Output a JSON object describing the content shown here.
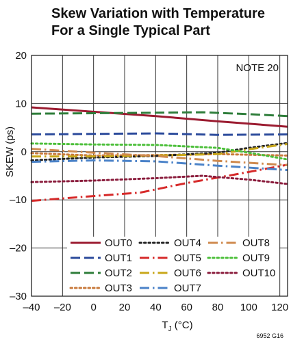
{
  "chart_data": {
    "type": "line",
    "title_lines": [
      "Skew Variation with Temperature",
      "For a Single Typical Part"
    ],
    "xlabel_main": "T",
    "xlabel_sub": "J",
    "xlabel_unit": " (°C)",
    "ylabel": "SKEW (ps)",
    "xlim": [
      -40,
      125
    ],
    "ylim": [
      -30,
      20
    ],
    "xticks": [
      -40,
      -20,
      0,
      20,
      40,
      60,
      80,
      100,
      120
    ],
    "xtick_labels": [
      "–40",
      "–20",
      "0",
      "20",
      "40",
      "60",
      "80",
      "100",
      "120"
    ],
    "yticks": [
      -30,
      -20,
      -10,
      0,
      10,
      20
    ],
    "ytick_labels": [
      "–30",
      "–20",
      "–10",
      "0",
      "10",
      "20"
    ],
    "grid": true,
    "note": "NOTE 20",
    "figure_code": "6952 G16",
    "legend_placement": "bottom",
    "series": [
      {
        "name": "OUT0",
        "color": "#9b1b30",
        "style": "solid",
        "x": [
          -40,
          0,
          40,
          80,
          125
        ],
        "values": [
          9.2,
          8.3,
          7.4,
          6.3,
          5.2
        ]
      },
      {
        "name": "OUT1",
        "color": "#2b4a9b",
        "style": "dash",
        "x": [
          -40,
          0,
          40,
          80,
          125
        ],
        "values": [
          3.6,
          3.7,
          3.8,
          3.5,
          3.6
        ]
      },
      {
        "name": "OUT2",
        "color": "#2e7d3a",
        "style": "dash",
        "x": [
          -40,
          0,
          40,
          70,
          100,
          125
        ],
        "values": [
          7.9,
          8.0,
          8.1,
          8.2,
          7.8,
          7.4
        ]
      },
      {
        "name": "OUT3",
        "color": "#c8793a",
        "style": "dot",
        "x": [
          -40,
          0,
          40,
          80,
          125
        ],
        "values": [
          -0.3,
          -0.8,
          -0.7,
          -0.5,
          -0.8
        ]
      },
      {
        "name": "OUT4",
        "color": "#222222",
        "style": "dot",
        "x": [
          -40,
          0,
          40,
          80,
          100,
          125
        ],
        "values": [
          -1.8,
          -1.2,
          -0.9,
          -0.2,
          0.8,
          1.8
        ]
      },
      {
        "name": "OUT5",
        "color": "#d62a2a",
        "style": "dashdot",
        "x": [
          -40,
          0,
          30,
          60,
          90,
          125
        ],
        "values": [
          -10.2,
          -9.2,
          -8.5,
          -6.5,
          -4.8,
          -2.7
        ]
      },
      {
        "name": "OUT6",
        "color": "#c8a71a",
        "style": "dashdot",
        "x": [
          -40,
          0,
          40,
          80,
          100,
          125
        ],
        "values": [
          -1.0,
          -1.0,
          -0.8,
          -0.5,
          0.5,
          1.6
        ]
      },
      {
        "name": "OUT7",
        "color": "#4a82c8",
        "style": "dashdot",
        "x": [
          -40,
          0,
          40,
          80,
          125
        ],
        "values": [
          -2.1,
          -1.8,
          -2.0,
          -2.9,
          -3.8
        ]
      },
      {
        "name": "OUT8",
        "color": "#cf8a4e",
        "style": "dashdot",
        "x": [
          -40,
          0,
          40,
          80,
          125
        ],
        "values": [
          0.6,
          -0.2,
          -0.9,
          -1.9,
          -2.8
        ]
      },
      {
        "name": "OUT9",
        "color": "#4cbf3a",
        "style": "dot",
        "x": [
          -40,
          0,
          40,
          80,
          100,
          125
        ],
        "values": [
          1.7,
          1.5,
          1.4,
          0.8,
          -0.2,
          -1.6
        ]
      },
      {
        "name": "OUT10",
        "color": "#8a1c3c",
        "style": "dot",
        "x": [
          -40,
          0,
          40,
          70,
          100,
          125
        ],
        "values": [
          -6.3,
          -6.0,
          -5.5,
          -5.0,
          -5.8,
          -6.7
        ]
      }
    ]
  }
}
